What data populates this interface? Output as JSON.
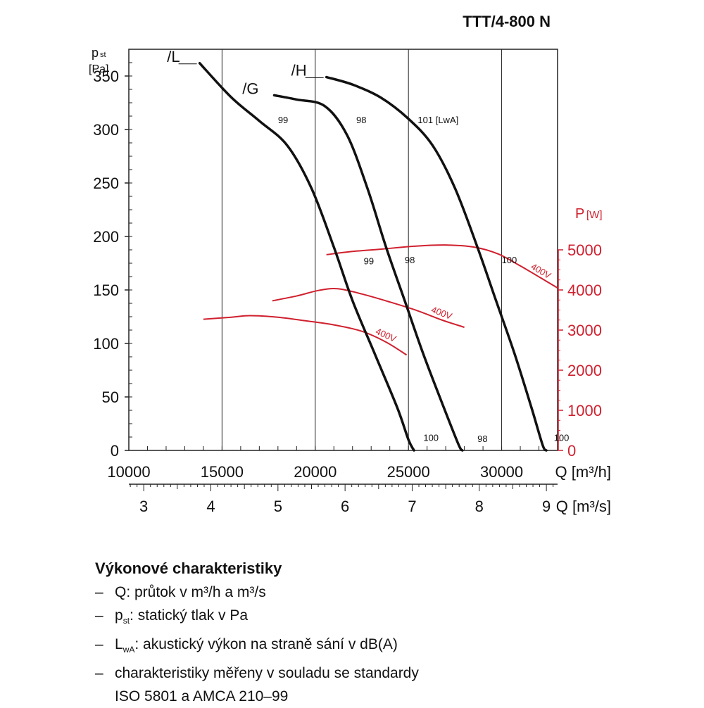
{
  "title": "TTT/4-800 N",
  "colors": {
    "pressure": "#111111",
    "power": "#d0202e",
    "grid": "#222222"
  },
  "chart_data": {
    "type": "line",
    "x_axis_primary": {
      "label": "Q [m³/h]",
      "range": [
        10000,
        33000
      ],
      "ticks": [
        10000,
        15000,
        20000,
        25000,
        30000
      ]
    },
    "x_axis_secondary": {
      "label": "Q [m³/s]",
      "ticks": [
        3,
        4,
        5,
        6,
        7,
        8,
        9
      ]
    },
    "y_axis_left": {
      "label_main": "p",
      "label_sub": "st",
      "unit": "[Pa]",
      "range": [
        0,
        375
      ],
      "ticks": [
        0,
        50,
        100,
        150,
        200,
        250,
        300,
        350
      ]
    },
    "y_axis_right": {
      "label_main": "P",
      "unit": "[W]",
      "range": [
        0,
        5000
      ],
      "ticks": [
        0,
        1000,
        2000,
        3000,
        4000,
        5000
      ]
    },
    "grid": "vertical and horizontal at major ticks",
    "series": [
      {
        "name": "/L",
        "axis": "left",
        "points": [
          [
            13800,
            362
          ],
          [
            15500,
            330
          ],
          [
            17000,
            308
          ],
          [
            18500,
            285
          ],
          [
            19800,
            245
          ],
          [
            21000,
            190
          ],
          [
            22000,
            140
          ],
          [
            23200,
            90
          ],
          [
            24400,
            40
          ],
          [
            25000,
            10
          ],
          [
            25300,
            0
          ]
        ],
        "labels": [
          {
            "text": "99",
            "x": 18000,
            "y": 306
          },
          {
            "text": "99",
            "x": 22600,
            "y": 174
          },
          {
            "text": "100",
            "x": 25800,
            "y": 9
          }
        ]
      },
      {
        "name": "/G",
        "axis": "right_pressure",
        "points": [
          [
            17800,
            332
          ],
          [
            19000,
            328
          ],
          [
            20500,
            322
          ],
          [
            21700,
            295
          ],
          [
            22800,
            245
          ],
          [
            23800,
            190
          ],
          [
            24800,
            140
          ],
          [
            25800,
            90
          ],
          [
            26900,
            40
          ],
          [
            27700,
            5
          ],
          [
            27900,
            0
          ]
        ],
        "labels": [
          {
            "text": "98",
            "x": 22200,
            "y": 306
          },
          {
            "text": "98",
            "x": 24800,
            "y": 175
          },
          {
            "text": "98",
            "x": 28700,
            "y": 8
          }
        ]
      },
      {
        "name": "/H",
        "axis": "left",
        "points": [
          [
            20600,
            349
          ],
          [
            22000,
            342
          ],
          [
            23500,
            330
          ],
          [
            25000,
            310
          ],
          [
            26300,
            285
          ],
          [
            27500,
            245
          ],
          [
            28700,
            190
          ],
          [
            29700,
            140
          ],
          [
            30700,
            90
          ],
          [
            31600,
            40
          ],
          [
            32200,
            5
          ],
          [
            32400,
            0
          ]
        ],
        "labels": [
          {
            "text": "101 [LwA]",
            "x": 25500,
            "y": 306
          },
          {
            "text": "100",
            "x": 30000,
            "y": 175
          },
          {
            "text": "100",
            "x": 32800,
            "y": 9
          }
        ]
      }
    ],
    "power_series": [
      {
        "name": "400V",
        "curve": "/L",
        "points": [
          [
            14000,
            3270
          ],
          [
            15500,
            3320
          ],
          [
            16500,
            3360
          ],
          [
            18000,
            3320
          ],
          [
            19500,
            3230
          ],
          [
            21000,
            3130
          ],
          [
            22500,
            2970
          ],
          [
            23800,
            2700
          ],
          [
            24900,
            2380
          ]
        ]
      },
      {
        "name": "400V",
        "curve": "/G",
        "points": [
          [
            17700,
            3730
          ],
          [
            19000,
            3850
          ],
          [
            20200,
            3990
          ],
          [
            21200,
            4030
          ],
          [
            22500,
            3900
          ],
          [
            24000,
            3700
          ],
          [
            25500,
            3480
          ],
          [
            26800,
            3250
          ],
          [
            28000,
            3070
          ]
        ]
      },
      {
        "name": "400V",
        "curve": "/H",
        "points": [
          [
            20600,
            4880
          ],
          [
            22000,
            4960
          ],
          [
            23600,
            5020
          ],
          [
            25300,
            5090
          ],
          [
            27000,
            5120
          ],
          [
            28500,
            5070
          ],
          [
            29800,
            4900
          ],
          [
            31000,
            4600
          ],
          [
            32100,
            4300
          ],
          [
            33000,
            4050
          ]
        ]
      }
    ]
  },
  "legend_block": {
    "heading": "Výkonové charakteristiky",
    "items": [
      {
        "dash": "–",
        "main": "Q: průtok v m³/h a m³/s"
      },
      {
        "dash": "–",
        "prefix": "p",
        "sub": "st",
        "main": ": statický tlak v Pa"
      },
      {
        "dash": "–",
        "prefix": "L",
        "sub": "wA",
        "main": ": akustický výkon na straně sání v dB(A)"
      },
      {
        "dash": "–",
        "main": "charakteristiky měřeny v souladu se standardy"
      }
    ],
    "continuation": "ISO 5801 a AMCA 210–99"
  }
}
